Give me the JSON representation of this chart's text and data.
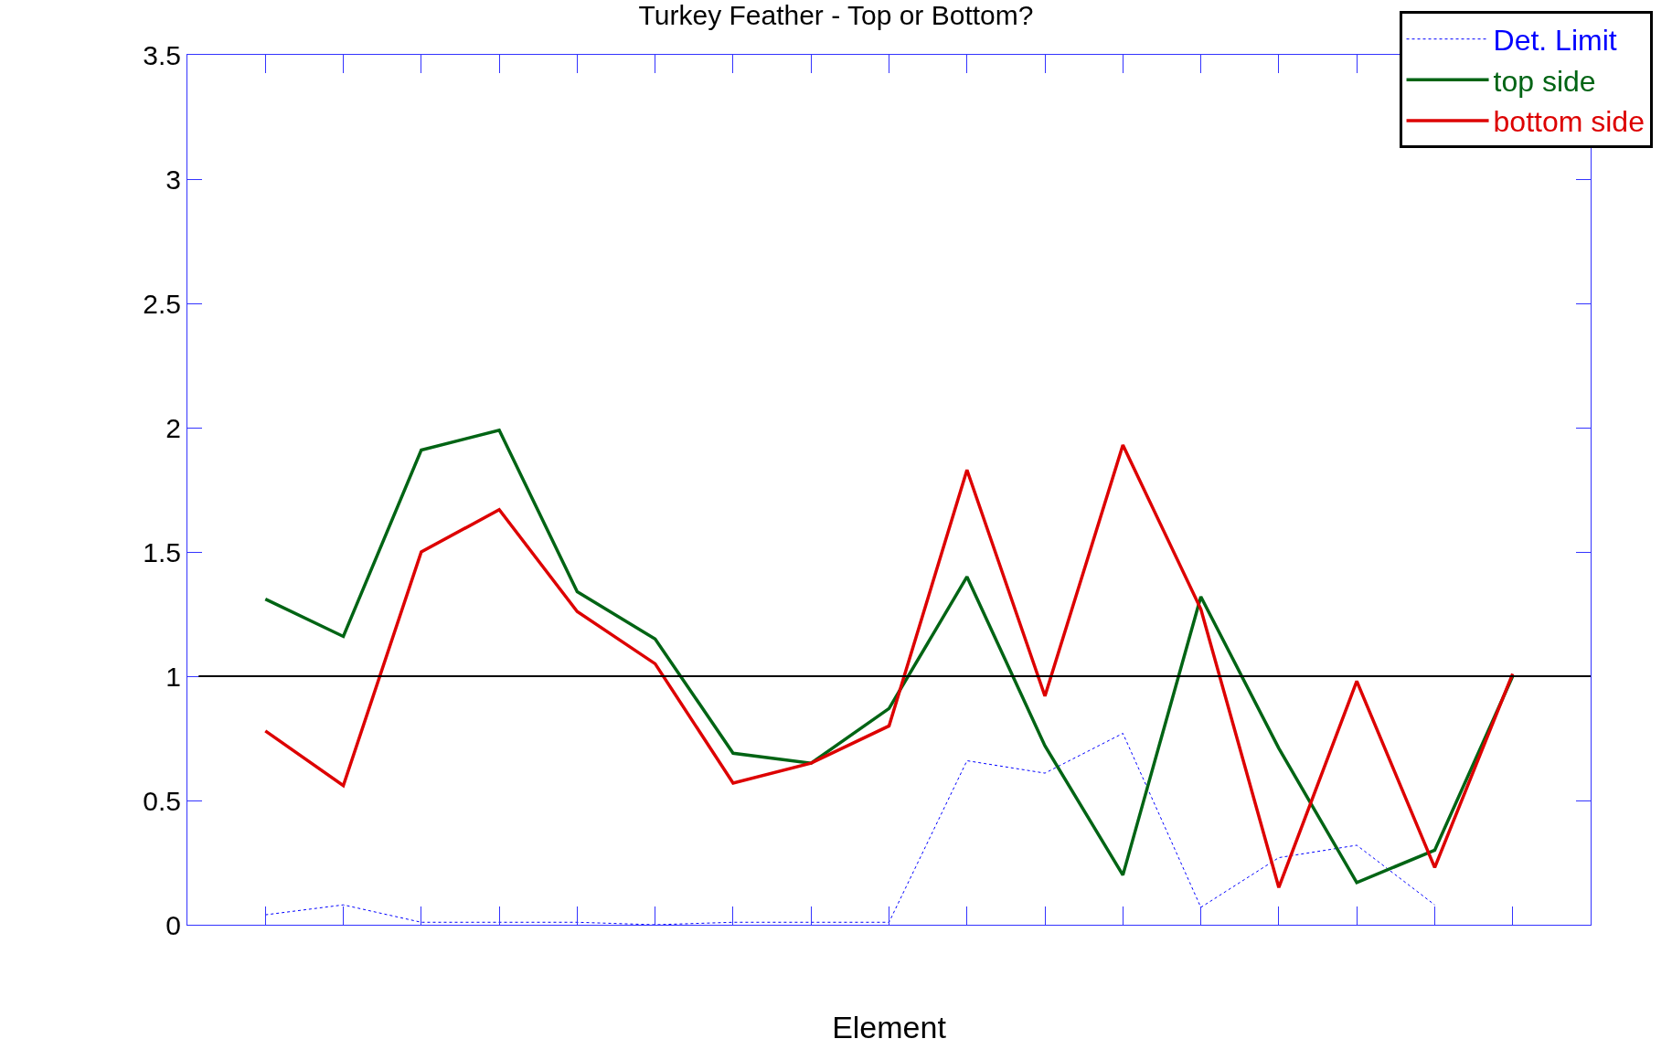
{
  "chart_data": {
    "type": "line",
    "title": "Turkey Feather - Top or Bottom?",
    "xlabel": "Element",
    "categories": [
      null,
      null,
      null,
      null,
      null,
      null,
      null,
      null,
      null,
      null,
      null,
      null,
      null,
      null,
      null,
      null,
      null
    ],
    "series": [
      {
        "name": "Det. Limit",
        "color": "#0000ff",
        "line_style": "dotted",
        "values": [
          0.04,
          0.08,
          0.01,
          0.01,
          0.01,
          0.0,
          0.01,
          0.01,
          0.01,
          0.66,
          0.61,
          0.77,
          0.07,
          0.27,
          0.32,
          0.08,
          null
        ]
      },
      {
        "name": "top side",
        "color": "#006414",
        "line_style": "solid",
        "values": [
          1.31,
          1.16,
          1.91,
          1.99,
          1.34,
          1.15,
          0.69,
          0.65,
          0.87,
          1.4,
          0.72,
          0.2,
          1.32,
          0.71,
          0.17,
          0.3,
          1.0
        ]
      },
      {
        "name": "bottom side",
        "color": "#dd0000",
        "line_style": "solid",
        "values": [
          0.78,
          0.56,
          1.5,
          1.67,
          1.26,
          1.05,
          0.57,
          0.65,
          0.8,
          1.83,
          0.92,
          1.93,
          1.27,
          0.15,
          0.98,
          0.23,
          1.01
        ]
      }
    ],
    "ylim": [
      0,
      3.5
    ],
    "yticks": [
      0,
      0.5,
      1,
      1.5,
      2,
      2.5,
      3,
      3.5
    ],
    "ref_lines": [
      {
        "axis": "y",
        "value": 1,
        "color": "#000000"
      }
    ],
    "legend": "top right",
    "tick_labels": "y",
    "marker": "none"
  }
}
